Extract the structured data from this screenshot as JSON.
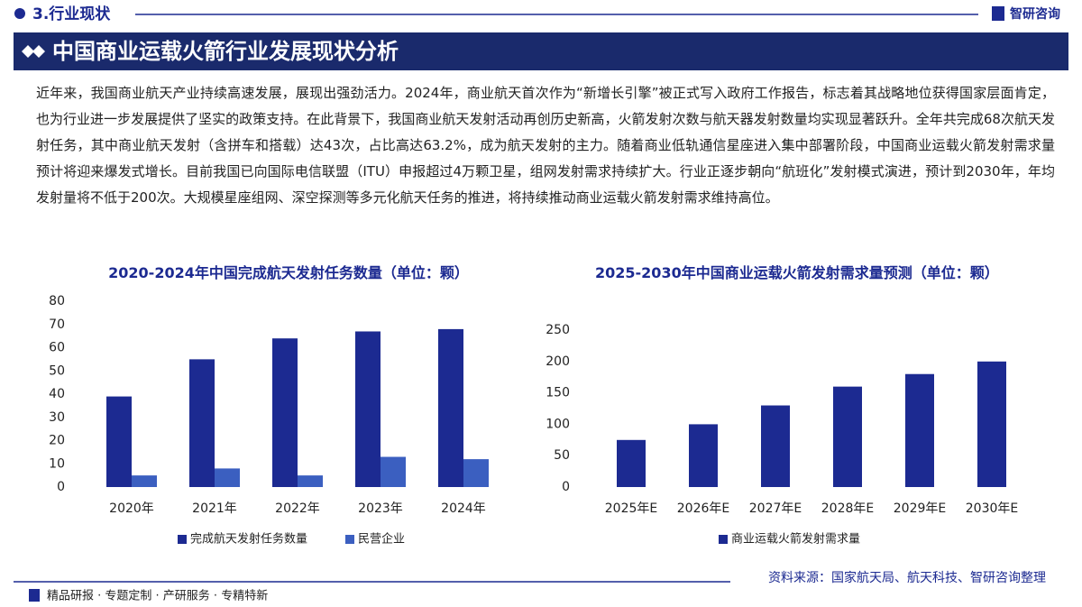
{
  "header": {
    "section": "3.行业现状",
    "brand": "智研咨询",
    "title": "中国商业运载火箭行业发展现状分析"
  },
  "paragraph": "近年来，我国商业航天产业持续高速发展，展现出强劲活力。2024年，商业航天首次作为“新增长引擎”被正式写入政府工作报告，标志着其战略地位获得国家层面肯定，也为行业进一步发展提供了坚实的政策支持。在此背景下，我国商业航天发射活动再创历史新高，火箭发射次数与航天器发射数量均实现显著跃升。全年共完成68次航天发射任务，其中商业航天发射（含拼车和搭载）达43次，占比高达63.2%，成为航天发射的主力。随着商业低轨通信星座进入集中部署阶段，中国商业运载火箭发射需求量预计将迎来爆发式增长。目前我国已向国际电信联盟（ITU）申报超过4万颗卫星，组网发射需求持续扩大。行业正逐步朝向“航班化”发射模式演进，预计到2030年，年均发射量将不低于200次。大规模星座组网、深空探测等多元化航天任务的推进，将持续推动商业运载火箭发射需求维持高位。",
  "chart_data": [
    {
      "type": "bar",
      "title": "2020-2024年中国完成航天发射任务数量（单位：颗）",
      "categories": [
        "2020年",
        "2021年",
        "2022年",
        "2023年",
        "2024年"
      ],
      "series": [
        {
          "name": "完成航天发射任务数量",
          "color": "#1c2a91",
          "values": [
            39,
            55,
            64,
            67,
            68
          ]
        },
        {
          "name": "民营企业",
          "color": "#3b5fc0",
          "values": [
            5,
            8,
            5,
            13,
            12
          ]
        }
      ],
      "ylim": [
        0,
        80
      ],
      "yticks": [
        0,
        10,
        20,
        30,
        40,
        50,
        60,
        70,
        80
      ],
      "grid": false
    },
    {
      "type": "bar",
      "title": "2025-2030年中国商业运载火箭发射需求量预测（单位：颗）",
      "categories": [
        "2025年E",
        "2026年E",
        "2027年E",
        "2028年E",
        "2029年E",
        "2030年E"
      ],
      "series": [
        {
          "name": "商业运载火箭发射需求量",
          "color": "#1c2a91",
          "values": [
            75,
            100,
            130,
            160,
            180,
            200
          ]
        }
      ],
      "ylim": [
        0,
        250
      ],
      "yticks": [
        0,
        50,
        100,
        150,
        200,
        250
      ],
      "grid": false
    }
  ],
  "source": "资料来源：国家航天局、航天科技、智研咨询整理",
  "footer": "精品研报 · 专题定制 · 产研服务 · 专精特新"
}
